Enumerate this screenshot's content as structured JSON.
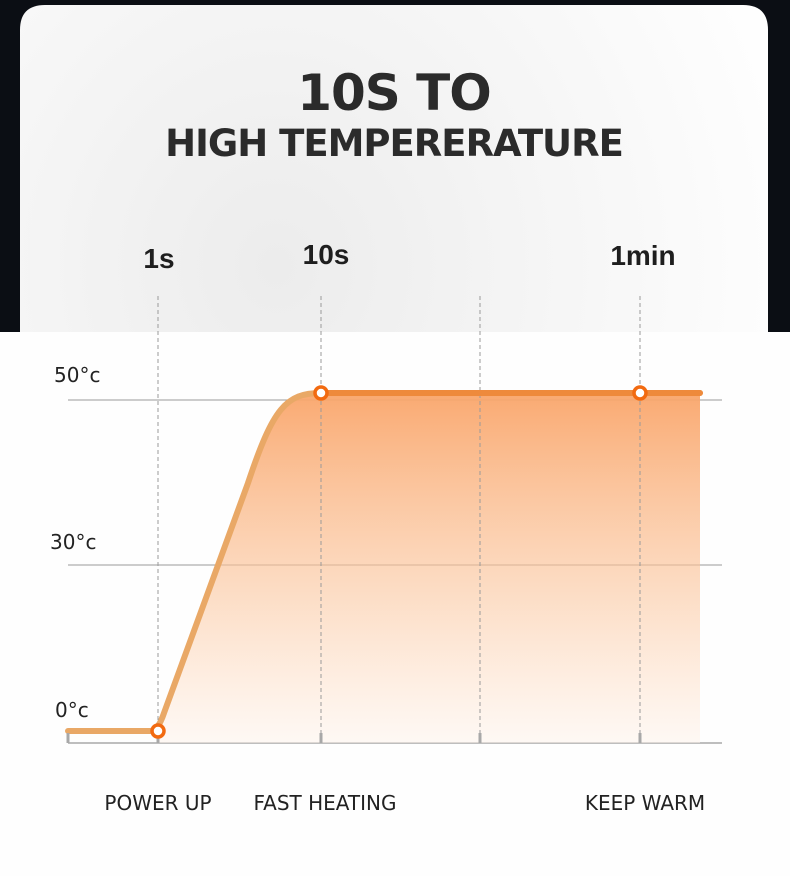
{
  "header": {
    "line1": "10S TO",
    "line2": "HIGH TEMPERERATURE"
  },
  "colors": {
    "curve": "#e9a866",
    "curve_flat": "#ee8a3c",
    "marker": "#f26a10",
    "fill_top": "#f9a56a",
    "grid": "#9a9a9a",
    "background_dark": "#0b0e14"
  },
  "chart_data": {
    "type": "area",
    "title": "",
    "x_ticks": [
      "",
      "1s",
      "10s",
      "",
      "1min"
    ],
    "y_ticks": [
      "0°c",
      "30°c",
      "50°c"
    ],
    "y_values": [
      0,
      30,
      50
    ],
    "points": [
      {
        "x": "start",
        "y": 0
      },
      {
        "x": "1s",
        "y": 0,
        "marker": true
      },
      {
        "x": "10s",
        "y": 50,
        "marker": true
      },
      {
        "x": "1min",
        "y": 50,
        "marker": true
      },
      {
        "x": "end",
        "y": 50
      }
    ],
    "phases": [
      "POWER UP",
      "FAST HEATING",
      "KEEP WARM"
    ],
    "grid": true
  }
}
